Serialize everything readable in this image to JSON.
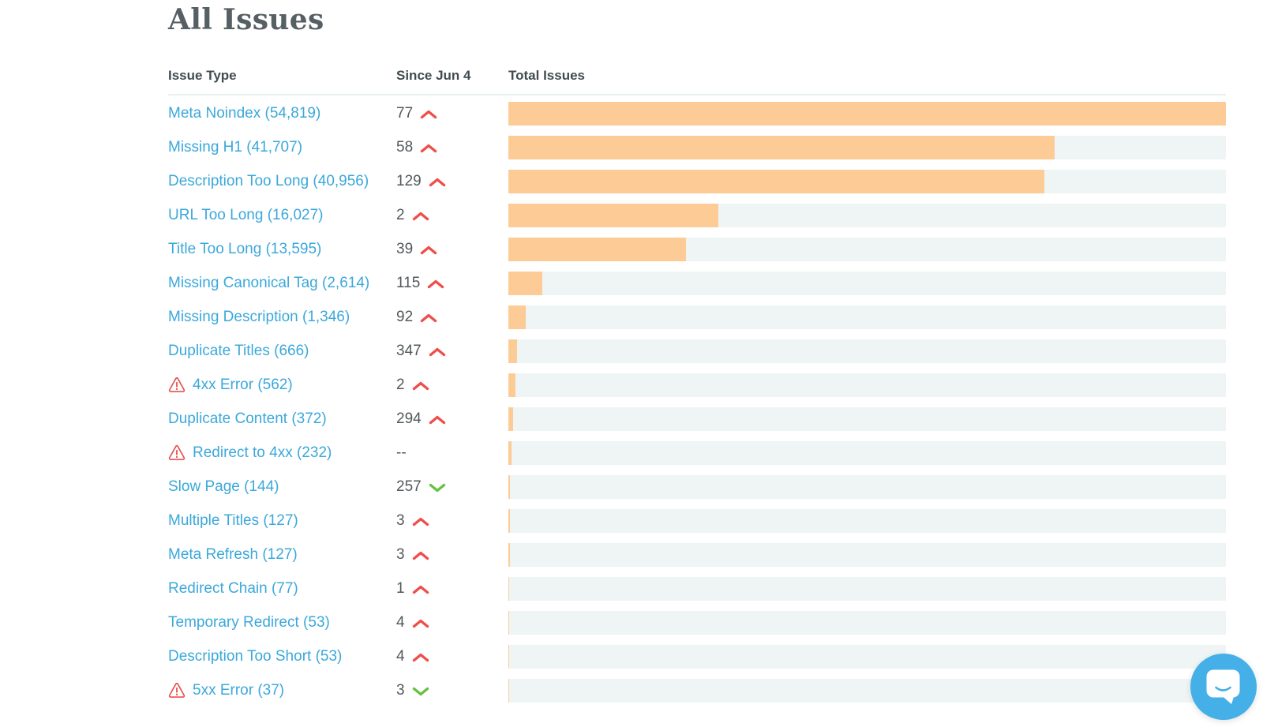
{
  "page_title": "All Issues",
  "table": {
    "headers": {
      "issue_type": "Issue Type",
      "since": "Since Jun 4",
      "total": "Total Issues"
    }
  },
  "chart_data": {
    "type": "bar",
    "title": "All Issues",
    "orientation": "horizontal",
    "x_max": 54819,
    "bar_fill_color": "#fccb96",
    "bar_track_color": "#eef5f4",
    "columns": [
      "Issue Type",
      "Since Jun 4",
      "Total Issues"
    ],
    "rows": [
      {
        "label": "Meta Noindex (54,819)",
        "total": 54819,
        "since": "77",
        "trend": "up",
        "warning": false
      },
      {
        "label": "Missing H1 (41,707)",
        "total": 41707,
        "since": "58",
        "trend": "up",
        "warning": false
      },
      {
        "label": "Description Too Long (40,956)",
        "total": 40956,
        "since": "129",
        "trend": "up",
        "warning": false
      },
      {
        "label": "URL Too Long (16,027)",
        "total": 16027,
        "since": "2",
        "trend": "up",
        "warning": false
      },
      {
        "label": "Title Too Long (13,595)",
        "total": 13595,
        "since": "39",
        "trend": "up",
        "warning": false
      },
      {
        "label": "Missing Canonical Tag (2,614)",
        "total": 2614,
        "since": "115",
        "trend": "up",
        "warning": false
      },
      {
        "label": "Missing Description (1,346)",
        "total": 1346,
        "since": "92",
        "trend": "up",
        "warning": false
      },
      {
        "label": "Duplicate Titles (666)",
        "total": 666,
        "since": "347",
        "trend": "up",
        "warning": false
      },
      {
        "label": "4xx Error (562)",
        "total": 562,
        "since": "2",
        "trend": "up",
        "warning": true
      },
      {
        "label": "Duplicate Content (372)",
        "total": 372,
        "since": "294",
        "trend": "up",
        "warning": false
      },
      {
        "label": "Redirect to 4xx (232)",
        "total": 232,
        "since": "--",
        "trend": "none",
        "warning": true
      },
      {
        "label": "Slow Page (144)",
        "total": 144,
        "since": "257",
        "trend": "down",
        "warning": false
      },
      {
        "label": "Multiple Titles (127)",
        "total": 127,
        "since": "3",
        "trend": "up",
        "warning": false
      },
      {
        "label": "Meta Refresh (127)",
        "total": 127,
        "since": "3",
        "trend": "up",
        "warning": false
      },
      {
        "label": "Redirect Chain (77)",
        "total": 77,
        "since": "1",
        "trend": "up",
        "warning": false
      },
      {
        "label": "Temporary Redirect (53)",
        "total": 53,
        "since": "4",
        "trend": "up",
        "warning": false
      },
      {
        "label": "Description Too Short (53)",
        "total": 53,
        "since": "4",
        "trend": "up",
        "warning": false
      },
      {
        "label": "5xx Error (37)",
        "total": 37,
        "since": "3",
        "trend": "down",
        "warning": true
      }
    ]
  },
  "colors": {
    "link": "#3ba8db",
    "trend_up": "#ef4e49",
    "trend_down": "#66c140",
    "warning": "#e8514d",
    "title_text": "#565f63",
    "header_text": "#414c50",
    "value_text": "#53585b",
    "chat_bubble": "#45b0e8"
  },
  "chat_widget": {
    "icon": "intercom-chat-icon"
  }
}
